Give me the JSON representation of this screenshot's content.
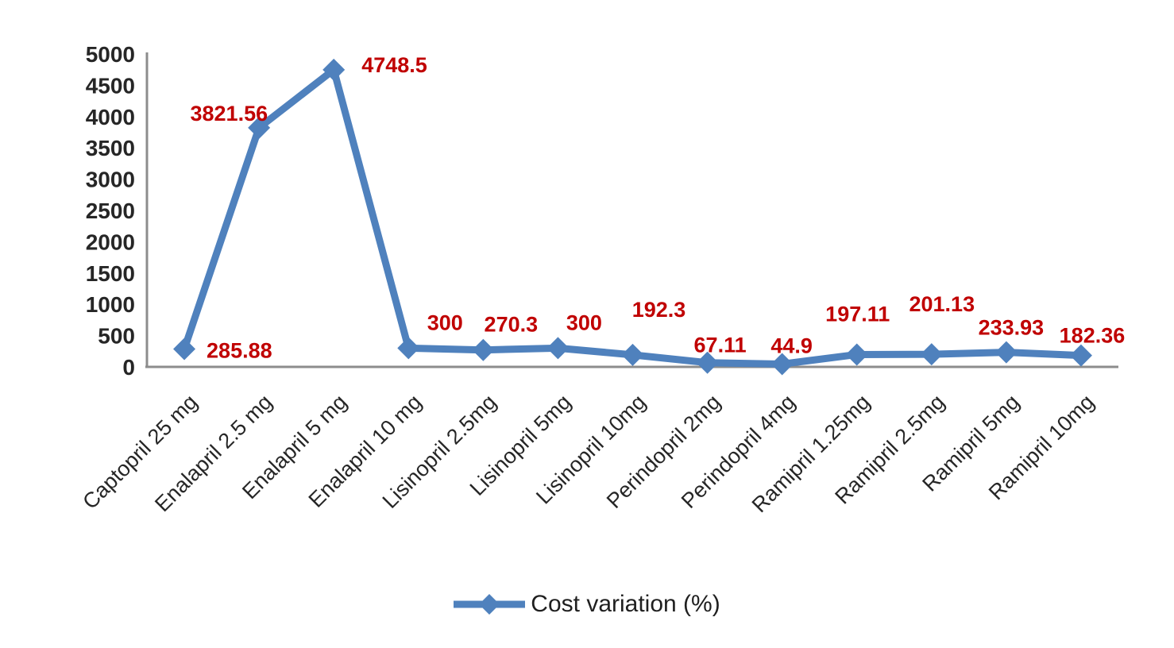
{
  "chart_data": {
    "type": "line",
    "title": "",
    "legend": {
      "label": "Cost variation (%)",
      "position": "bottom-center"
    },
    "categories": [
      "Captopril 25 mg",
      "Enalapril 2.5 mg",
      "Enalapril 5 mg",
      "Enalapril 10 mg",
      "Lisinopril 2.5mg",
      "Lisinopril 5mg",
      "Lisinopril 10mg",
      "Perindopril 2mg",
      "Perindopril 4mg",
      "Ramipril 1.25mg",
      "Ramipril 2.5mg",
      "Ramipril 5mg",
      "Ramipril 10mg"
    ],
    "series": [
      {
        "name": "Cost variation (%)",
        "values": [
          285.88,
          3821.56,
          4748.5,
          300,
          270.3,
          300,
          192.3,
          67.11,
          44.9,
          197.11,
          201.13,
          233.93,
          182.36
        ]
      }
    ],
    "data_labels": [
      "285.88",
      "3821.56",
      "4748.5",
      "300",
      "270.3",
      "300",
      "192.3",
      "67.11",
      "44.9",
      "197.11",
      "201.13",
      "233.93",
      "182.36"
    ],
    "y_axis": {
      "min": 0,
      "max": 5000,
      "step": 500,
      "tick_labels": [
        "0",
        "500",
        "1000",
        "1500",
        "2000",
        "2500",
        "3000",
        "3500",
        "4000",
        "4500",
        "5000"
      ]
    },
    "x_axis": {
      "label_rotation_deg": -45
    },
    "grid": false,
    "marker_shape": "diamond",
    "colors": {
      "line": "#4F81BD",
      "marker": "#4F81BD",
      "data_label": "#C00000",
      "axis_line": "#8C8C8C",
      "tick_label": "#262626",
      "category_label": "#262626",
      "legend_text": "#1F1F1F",
      "background": "#FFFFFF"
    }
  }
}
